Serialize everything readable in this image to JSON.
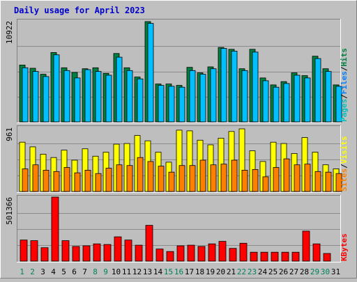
{
  "chart_data": {
    "type": "bar",
    "title": "Daily usage for April 2023",
    "categories": [
      "1",
      "2",
      "3",
      "4",
      "5",
      "6",
      "7",
      "8",
      "9",
      "10",
      "11",
      "12",
      "13",
      "14",
      "15",
      "16",
      "17",
      "18",
      "19",
      "20",
      "21",
      "22",
      "23",
      "24",
      "25",
      "26",
      "27",
      "28",
      "29",
      "30",
      "31"
    ],
    "weekend_days": [
      "1",
      "2",
      "8",
      "9",
      "15",
      "16",
      "22",
      "23",
      "29",
      "30"
    ],
    "colors": {
      "title": "#0000cc",
      "background": "#c0c0c0",
      "plot": "#bebebe",
      "hits": "#008040",
      "files": "#00c0ff",
      "visits": "#ffff00",
      "sites": "#ff8000",
      "kbytes": "#ff0000",
      "weekday_label": "#000000",
      "weekend_label": "#00805c"
    },
    "panels": [
      {
        "id": "hits-files",
        "scale_label": "10922",
        "ymax": 10922,
        "axis_title": [
          {
            "text": "Pages",
            "color": "#00c0c0"
          },
          {
            "text": "/",
            "color": "#000000"
          },
          {
            "text": "Files",
            "color": "#0080ff"
          },
          {
            "text": "/",
            "color": "#000000"
          },
          {
            "text": "Hits",
            "color": "#008040"
          }
        ],
        "series": [
          {
            "name": "Hits",
            "color": "#008040",
            "values": [
              6150,
              5800,
              5150,
              7500,
              5850,
              5350,
              5750,
              5850,
              5250,
              7400,
              5850,
              4850,
              10850,
              4100,
              4100,
              3950,
              5900,
              5300,
              5950,
              8050,
              7850,
              5750,
              7850,
              4750,
              4000,
              4350,
              5300,
              5000,
              7100,
              5750,
              4000
            ]
          },
          {
            "name": "Files",
            "color": "#00c0ff",
            "values": [
              5850,
              5450,
              4900,
              7250,
              5550,
              4750,
              5650,
              5450,
              5050,
              7000,
              5550,
              4650,
              10650,
              3950,
              3850,
              3750,
              5550,
              5150,
              5750,
              7950,
              7650,
              5550,
              7550,
              4450,
              3750,
              4150,
              5050,
              4750,
              6850,
              5450,
              3850
            ]
          }
        ]
      },
      {
        "id": "visits-sites",
        "scale_label": "961",
        "ymax": 961,
        "axis_title": [
          {
            "text": "Sites",
            "color": "#ff8000"
          },
          {
            "text": "/",
            "color": "#000000"
          },
          {
            "text": "Visits",
            "color": "#ffff00"
          }
        ],
        "series": [
          {
            "name": "Visits",
            "color": "#ffff00",
            "values": [
              740,
              670,
              560,
              510,
              620,
              470,
              640,
              530,
              590,
              710,
              720,
              840,
              760,
              590,
              440,
              920,
              910,
              770,
              700,
              800,
              900,
              940,
              610,
              450,
              740,
              720,
              570,
              810,
              590,
              400,
              340
            ]
          },
          {
            "name": "Sites",
            "color": "#ff8000",
            "values": [
              340,
              400,
              320,
              300,
              360,
              280,
              320,
              270,
              350,
              400,
              390,
              510,
              450,
              380,
              290,
              390,
              390,
              470,
              400,
              410,
              470,
              320,
              330,
              220,
              360,
              490,
              400,
              410,
              300,
              290,
              270
            ]
          }
        ]
      },
      {
        "id": "kbytes",
        "scale_label": "501366",
        "ymax": 501366,
        "axis_title": [
          {
            "text": "KBytes",
            "color": "#ff0000"
          }
        ],
        "series": [
          {
            "name": "KBytes",
            "color": "#ff0000",
            "values": [
              165000,
              160000,
              105000,
              501366,
              160000,
              115000,
              120000,
              135000,
              130000,
              190000,
              165000,
              125000,
              280000,
              95000,
              75000,
              120000,
              125000,
              115000,
              135000,
              155000,
              100000,
              140000,
              70000,
              70000,
              70000,
              70000,
              70000,
              235000,
              135000,
              60000,
              0
            ]
          }
        ]
      }
    ]
  }
}
